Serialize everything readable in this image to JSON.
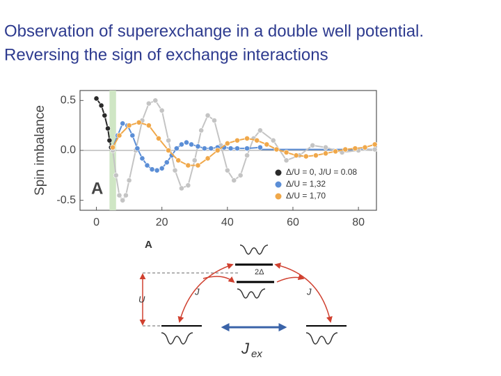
{
  "title_lines": [
    "Observation of superexchange in a double well potential.",
    "Reversing the sign of exchange interactions"
  ],
  "chart_data": {
    "type": "scatter-line",
    "y_label": "Spin imbalance",
    "panel_label": "A",
    "xlim": [
      -5,
      85.5
    ],
    "ylim": [
      -0.6,
      0.6
    ],
    "xticks": [
      0,
      20,
      40,
      60,
      80
    ],
    "yticks": [
      0.5,
      {
        "value": 0,
        "label": "0.0"
      },
      -0.5
    ],
    "legend": "lower right",
    "series": [
      {
        "color": "#c4c4c4",
        "x": [
          5,
          6,
          7,
          8,
          9,
          10,
          12,
          14,
          16,
          18,
          20,
          22,
          24,
          26,
          28,
          30,
          32,
          34,
          36,
          38,
          40,
          42,
          44,
          46,
          48,
          50,
          54,
          58,
          62,
          66,
          70,
          75,
          80,
          85
        ],
        "values": [
          0.0,
          -0.25,
          -0.45,
          -0.5,
          -0.45,
          -0.3,
          0.0,
          0.3,
          0.47,
          0.5,
          0.4,
          0.1,
          -0.2,
          -0.38,
          -0.35,
          -0.1,
          0.2,
          0.35,
          0.3,
          0.05,
          -0.2,
          -0.3,
          -0.25,
          -0.05,
          0.12,
          0.2,
          0.1,
          -0.1,
          -0.05,
          0.05,
          0.03,
          -0.02,
          0.0,
          0.01
        ]
      },
      {
        "name": "Δ/U = 0,  J/U = 0.08",
        "color": "#2a2a2a",
        "x": [
          0,
          1.5,
          2.5,
          3.5,
          4,
          4.5
        ],
        "values": [
          0.52,
          0.45,
          0.35,
          0.22,
          0.1,
          0.03
        ]
      },
      {
        "name": "Δ/U = 1,32",
        "color": "#5b8ed6",
        "x": [
          5,
          6.5,
          8,
          9.5,
          11,
          12.5,
          14,
          15.5,
          17,
          18.5,
          20,
          21.5,
          23,
          24.5,
          26,
          27.5,
          29,
          31,
          33,
          35,
          37,
          39,
          41,
          43,
          46,
          50
        ],
        "values": [
          0.03,
          0.15,
          0.27,
          0.25,
          0.15,
          0.02,
          -0.08,
          -0.15,
          -0.19,
          -0.2,
          -0.18,
          -0.12,
          -0.05,
          0.02,
          0.06,
          0.08,
          0.06,
          0.04,
          0.02,
          0.02,
          0.03,
          0.03,
          0.02,
          0.02,
          0.02,
          0.03
        ]
      },
      {
        "name": "Δ/U = 1,70",
        "color": "#f0a84a",
        "x": [
          5,
          7,
          10,
          13,
          16,
          19,
          22,
          25,
          28,
          31,
          34,
          37,
          40,
          43,
          46,
          49,
          52,
          55,
          58,
          61,
          64,
          67,
          70,
          73,
          76,
          79,
          82,
          85
        ],
        "values": [
          0.03,
          0.15,
          0.25,
          0.28,
          0.25,
          0.12,
          0.0,
          -0.1,
          -0.15,
          -0.15,
          -0.08,
          0.0,
          0.07,
          0.1,
          0.12,
          0.1,
          0.06,
          0.01,
          -0.02,
          -0.05,
          -0.06,
          -0.05,
          -0.03,
          -0.01,
          0.01,
          0.02,
          0.03,
          0.06
        ]
      }
    ]
  },
  "diagram": {
    "label": "A",
    "delta": "2Δ",
    "u": "U",
    "j_left": "J",
    "j_right": "J",
    "jex_main": "J",
    "jex_sub": "ex"
  }
}
